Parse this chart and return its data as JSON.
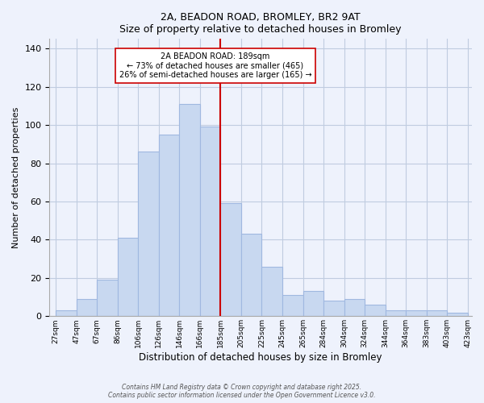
{
  "title": "2A, BEADON ROAD, BROMLEY, BR2 9AT",
  "subtitle": "Size of property relative to detached houses in Bromley",
  "xlabel": "Distribution of detached houses by size in Bromley",
  "ylabel": "Number of detached properties",
  "bar_color": "#c8d8f0",
  "bar_edge_color": "#a0b8e0",
  "grid_color": "#c0cce0",
  "background_color": "#eef2fc",
  "bin_labels": [
    "27sqm",
    "47sqm",
    "67sqm",
    "86sqm",
    "106sqm",
    "126sqm",
    "146sqm",
    "166sqm",
    "185sqm",
    "205sqm",
    "225sqm",
    "245sqm",
    "265sqm",
    "284sqm",
    "304sqm",
    "324sqm",
    "344sqm",
    "364sqm",
    "383sqm",
    "403sqm",
    "423sqm"
  ],
  "bar_heights": [
    3,
    9,
    19,
    41,
    86,
    95,
    111,
    99,
    59,
    43,
    26,
    11,
    13,
    8,
    9,
    6,
    3,
    3,
    3,
    2
  ],
  "vline_x": 8,
  "vline_color": "#cc0000",
  "annotation_title": "2A BEADON ROAD: 189sqm",
  "annotation_line1": "← 73% of detached houses are smaller (465)",
  "annotation_line2": "26% of semi-detached houses are larger (165) →",
  "annotation_box_color": "#ffffff",
  "annotation_box_edge_color": "#cc0000",
  "ylim": [
    0,
    145
  ],
  "yticks": [
    0,
    20,
    40,
    60,
    80,
    100,
    120,
    140
  ],
  "footer1": "Contains HM Land Registry data © Crown copyright and database right 2025.",
  "footer2": "Contains public sector information licensed under the Open Government Licence v3.0."
}
